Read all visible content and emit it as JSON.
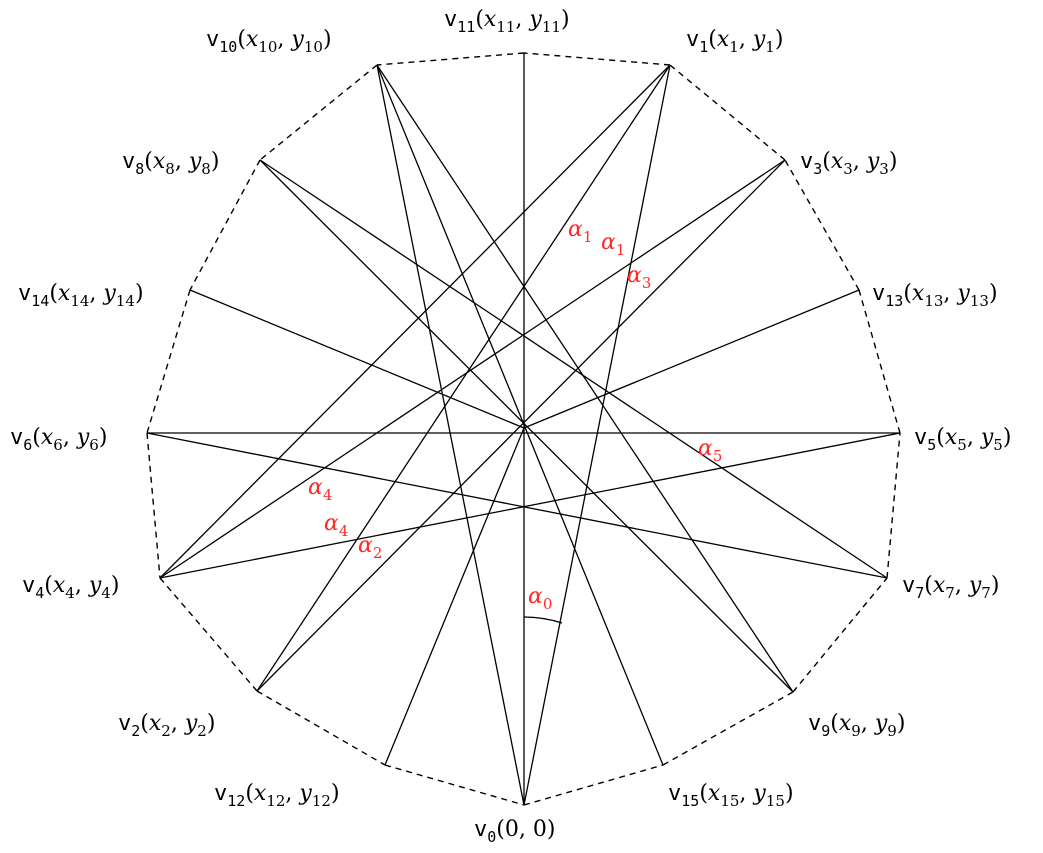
{
  "vertices": [
    {
      "id": "v0",
      "letter": "v",
      "sub": "0",
      "coords": "(0, 0)"
    },
    {
      "id": "v1",
      "letter": "v",
      "sub": "1",
      "coords": "(x1, y1)",
      "x": "x",
      "xs": "1",
      "y": "y",
      "ys": "1"
    },
    {
      "id": "v2",
      "letter": "v",
      "sub": "2",
      "x": "x",
      "xs": "2",
      "y": "y",
      "ys": "2"
    },
    {
      "id": "v3",
      "letter": "v",
      "sub": "3",
      "x": "x",
      "xs": "3",
      "y": "y",
      "ys": "3"
    },
    {
      "id": "v4",
      "letter": "v",
      "sub": "4",
      "x": "x",
      "xs": "4",
      "y": "y",
      "ys": "4"
    },
    {
      "id": "v5",
      "letter": "v",
      "sub": "5",
      "x": "x",
      "xs": "5",
      "y": "y",
      "ys": "5"
    },
    {
      "id": "v6",
      "letter": "v",
      "sub": "6",
      "x": "x",
      "xs": "6",
      "y": "y",
      "ys": "6"
    },
    {
      "id": "v7",
      "letter": "v",
      "sub": "7",
      "x": "x",
      "xs": "7",
      "y": "y",
      "ys": "7"
    },
    {
      "id": "v8",
      "letter": "v",
      "sub": "8",
      "x": "x",
      "xs": "8",
      "y": "y",
      "ys": "8"
    },
    {
      "id": "v9",
      "letter": "v",
      "sub": "9",
      "x": "x",
      "xs": "9",
      "y": "y",
      "ys": "9"
    },
    {
      "id": "v10",
      "letter": "v",
      "sub": "10",
      "x": "x",
      "xs": "10",
      "y": "y",
      "ys": "10"
    },
    {
      "id": "v11",
      "letter": "v",
      "sub": "11",
      "x": "x",
      "xs": "11",
      "y": "y",
      "ys": "11"
    },
    {
      "id": "v12",
      "letter": "v",
      "sub": "12",
      "x": "x",
      "xs": "12",
      "y": "y",
      "ys": "12"
    },
    {
      "id": "v13",
      "letter": "v",
      "sub": "13",
      "x": "x",
      "xs": "13",
      "y": "y",
      "ys": "13"
    },
    {
      "id": "v14",
      "letter": "v",
      "sub": "14",
      "x": "x",
      "xs": "14",
      "y": "y",
      "ys": "14"
    },
    {
      "id": "v15",
      "letter": "v",
      "sub": "15",
      "x": "x",
      "xs": "15",
      "y": "y",
      "ys": "15"
    }
  ],
  "angles": [
    {
      "id": "a0",
      "symbol": "α",
      "sub": "0"
    },
    {
      "id": "a1a",
      "symbol": "α",
      "sub": "1"
    },
    {
      "id": "a1b",
      "symbol": "α",
      "sub": "1"
    },
    {
      "id": "a3",
      "symbol": "α",
      "sub": "3"
    },
    {
      "id": "a5",
      "symbol": "α",
      "sub": "5"
    },
    {
      "id": "a4a",
      "symbol": "α",
      "sub": "4"
    },
    {
      "id": "a4b",
      "symbol": "α",
      "sub": "4"
    },
    {
      "id": "a2",
      "symbol": "α",
      "sub": "2"
    }
  ],
  "colors": {
    "line": "#000000",
    "angle": "#ff2a2a"
  }
}
